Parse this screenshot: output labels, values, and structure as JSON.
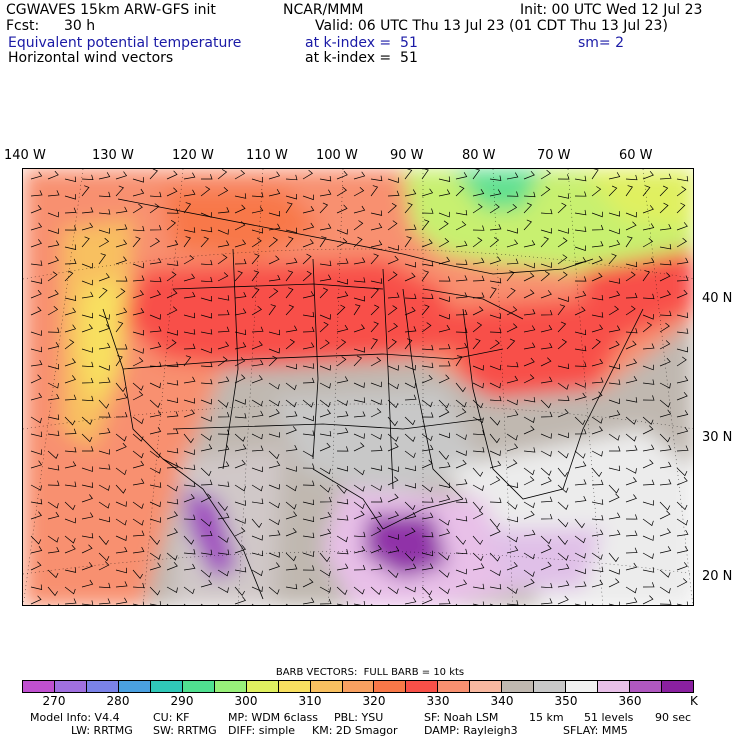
{
  "header": {
    "model": "CGWAVES 15km ARW-GFS init",
    "org": "NCAR/MMM",
    "init": "Init: 00 UTC Wed 12 Jul 23",
    "fcst_label": "Fcst:",
    "fcst_value": "30 h",
    "valid": "Valid: 06 UTC Thu 13 Jul 23 (01 CDT Thu 13 Jul 23)",
    "field1": "Equivalent potential temperature",
    "field1_level": "at k-index =  51",
    "field1_smooth": "sm= 2",
    "field2": "Horizontal wind vectors",
    "field2_level": "at k-index =  51"
  },
  "map": {
    "lon_labels": [
      "140 W",
      "130 W",
      "120 W",
      "110 W",
      "100 W",
      "90 W",
      "80 W",
      "70 W",
      "60 W"
    ],
    "lat_labels": [
      "40 N",
      "30 N",
      "20 N"
    ]
  },
  "barb": {
    "title": "BARB VECTORS:  FULL BARB = 10 kts"
  },
  "colorbar": {
    "colors": [
      "#c050d0",
      "#a070e0",
      "#7a82e8",
      "#4aa0e0",
      "#30c8b8",
      "#50e090",
      "#98f07a",
      "#e0f060",
      "#f8e060",
      "#f8c060",
      "#f8a060",
      "#f87848",
      "#f85048",
      "#f89070",
      "#f8b8a0",
      "#c0b8b0",
      "#c8c8c8",
      "#f0f0f0",
      "#e8c0e8",
      "#b058c0",
      "#8a20a0"
    ],
    "ticks": [
      "270",
      "280",
      "290",
      "300",
      "310",
      "320",
      "330",
      "340",
      "350",
      "360"
    ],
    "unit": "K"
  },
  "footer": {
    "line1": [
      "Model Info: V4.4",
      "CU: KF",
      "MP: WDM 6class",
      "PBL: YSU",
      "SF: Noah LSM",
      "15 km",
      "51 levels",
      "90 sec"
    ],
    "line2": [
      "LW: RRTMG",
      "SW: RRTMG",
      "DIFF: simple",
      "KM: 2D Smagor",
      "DAMP: Rayleigh3",
      "SFLAY: MM5"
    ]
  }
}
